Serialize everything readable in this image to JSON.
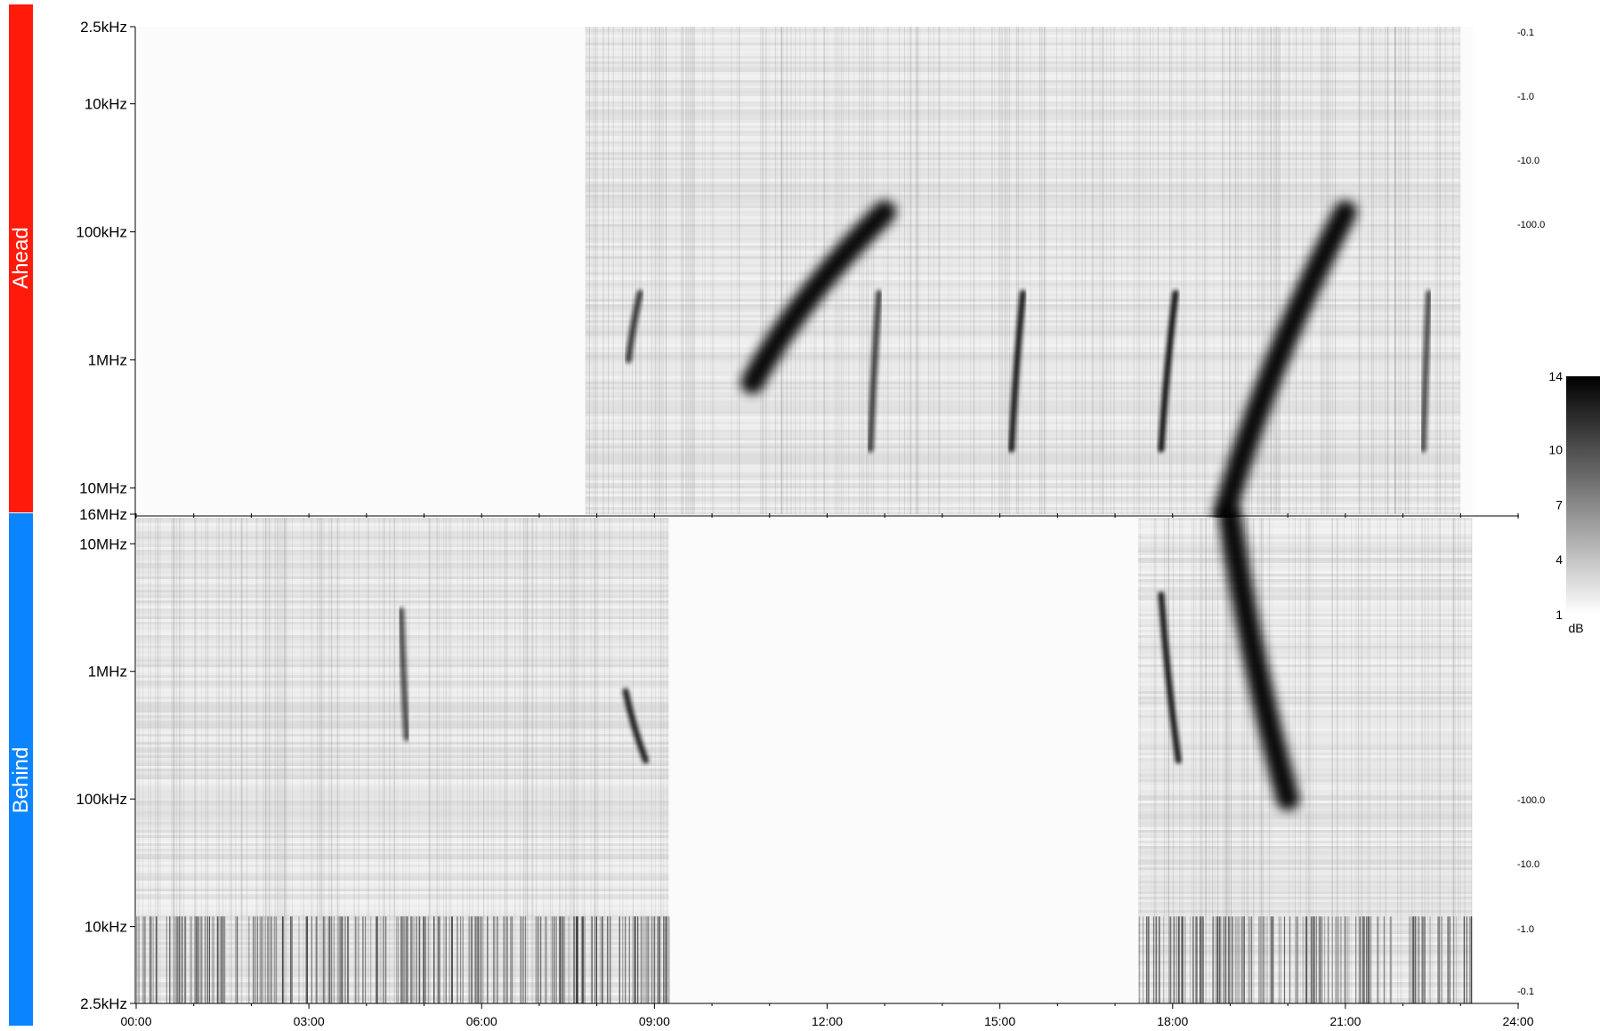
{
  "chart_data": {
    "type": "heatmap",
    "x_axis": {
      "range": [
        "00:00",
        "24:00"
      ],
      "tick_labels": [
        "00:00",
        "03:00",
        "06:00",
        "09:00",
        "12:00",
        "15:00",
        "18:00",
        "21:00",
        "24:00"
      ]
    },
    "panels": [
      {
        "name": "Ahead",
        "color": "#ff1a0a",
        "y_tick_labels": [
          "2.5kHz",
          "10kHz",
          "100kHz",
          "1MHz",
          "10MHz",
          "16MHz"
        ],
        "y_scale": "log, frequency increasing downward",
        "right_labels": [
          "-0.1",
          "-1.0",
          "-10.0",
          "-100.0"
        ],
        "data_coverage_hours": [
          7.8,
          23.0
        ],
        "bursts": [
          {
            "start_h": 10.7,
            "end_h": 13.0,
            "f_high": "1.5MHz",
            "f_low": "70kHz",
            "intensity": 1.0
          },
          {
            "start_h": 8.55,
            "end_h": 8.75,
            "f_high": "1MHz",
            "f_low": "300kHz",
            "intensity": 0.75
          },
          {
            "start_h": 12.75,
            "end_h": 12.9,
            "f_high": "5MHz",
            "f_low": "300kHz",
            "intensity": 0.7
          },
          {
            "start_h": 15.2,
            "end_h": 15.4,
            "f_high": "5MHz",
            "f_low": "300kHz",
            "intensity": 0.9
          },
          {
            "start_h": 17.8,
            "end_h": 18.05,
            "f_high": "5MHz",
            "f_low": "300kHz",
            "intensity": 0.95
          },
          {
            "start_h": 18.9,
            "end_h": 21.0,
            "f_high": "16MHz",
            "f_low": "70kHz",
            "intensity": 1.0
          },
          {
            "start_h": 22.35,
            "end_h": 22.45,
            "f_high": "5MHz",
            "f_low": "300kHz",
            "intensity": 0.6
          }
        ]
      },
      {
        "name": "Behind",
        "color": "#0a84ff",
        "y_tick_labels": [
          "10MHz",
          "1MHz",
          "100kHz",
          "10kHz",
          "2.5kHz"
        ],
        "y_scale": "log, frequency decreasing downward",
        "right_labels": [
          "-100.0",
          "-10.0",
          "-1.0",
          "-0.1"
        ],
        "data_coverage_hours": [
          [
            0.0,
            9.25
          ],
          [
            17.4,
            23.2
          ]
        ],
        "bursts": [
          {
            "start_h": 8.5,
            "end_h": 8.85,
            "f_high": "700kHz",
            "f_low": "200kHz",
            "intensity": 0.85
          },
          {
            "start_h": 4.6,
            "end_h": 4.7,
            "f_high": "3MHz",
            "f_low": "300kHz",
            "intensity": 0.6
          },
          {
            "start_h": 17.8,
            "end_h": 18.1,
            "f_high": "4MHz",
            "f_low": "200kHz",
            "intensity": 0.9
          },
          {
            "start_h": 19.0,
            "end_h": 20.0,
            "f_high": "16MHz",
            "f_low": "100kHz",
            "intensity": 1.0
          }
        ]
      }
    ],
    "colorbar": {
      "label": "dB",
      "tick_labels": [
        "14",
        "10",
        "7",
        "4",
        "1"
      ],
      "range": [
        1,
        14
      ],
      "colormap": "white to black"
    }
  }
}
